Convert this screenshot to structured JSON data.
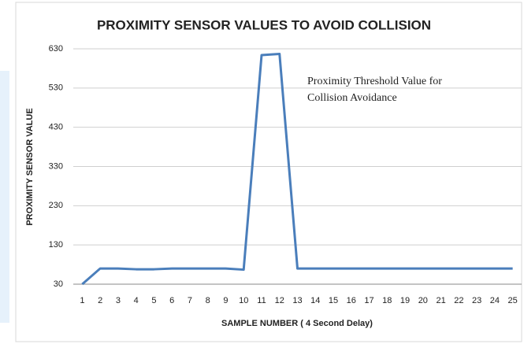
{
  "chart_data": {
    "type": "line",
    "title": "PROXIMITY SENSOR VALUES TO AVOID COLLISION",
    "y_label": "PROXIMITY SENSOR VALUE",
    "x_label": "SAMPLE NUMBER ( 4 Second Delay)",
    "annotation": [
      "Proximity Threshold Value for",
      "Collision Avoidance"
    ],
    "categories": [
      "1",
      "2",
      "3",
      "4",
      "5",
      "6",
      "7",
      "8",
      "9",
      "10",
      "11",
      "12",
      "13",
      "14",
      "15",
      "16",
      "17",
      "18",
      "19",
      "20",
      "21",
      "22",
      "23",
      "24",
      "25"
    ],
    "series": [
      {
        "name": "Proximity sensor value",
        "color": "#4a7ebb",
        "values": [
          30,
          70,
          70,
          68,
          68,
          70,
          70,
          70,
          70,
          67,
          614,
          617,
          70,
          70,
          70,
          70,
          70,
          70,
          70,
          70,
          70,
          70,
          70,
          70,
          70
        ]
      }
    ],
    "ylim": [
      30,
      630
    ],
    "yticks": [
      30,
      130,
      230,
      330,
      430,
      530,
      630
    ],
    "grid": true
  }
}
